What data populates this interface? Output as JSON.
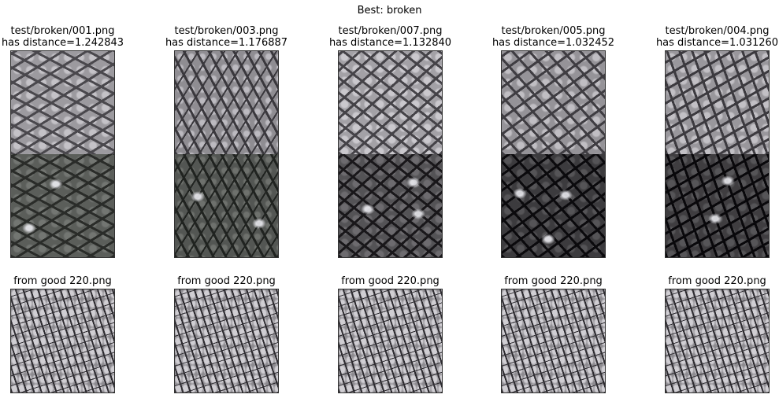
{
  "suptitle": "Best: broken",
  "columns": [
    {
      "test_path": "test/broken/001.png",
      "distance_label": "has distance=1.242843",
      "reference_label": "from good 220.png"
    },
    {
      "test_path": "test/broken/003.png",
      "distance_label": "has distance=1.176887",
      "reference_label": "from good 220.png"
    },
    {
      "test_path": "test/broken/007.png",
      "distance_label": "has distance=1.132840",
      "reference_label": "from good 220.png"
    },
    {
      "test_path": "test/broken/005.png",
      "distance_label": "has distance=1.032452",
      "reference_label": "from good 220.png"
    },
    {
      "test_path": "test/broken/004.png",
      "distance_label": "has distance=1.031260",
      "reference_label": "from good 220.png"
    }
  ]
}
